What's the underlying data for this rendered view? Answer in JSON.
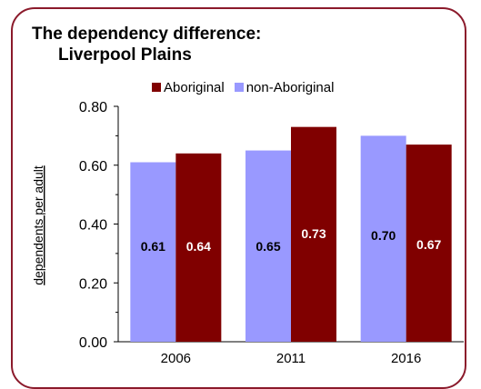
{
  "chart_data": {
    "type": "bar",
    "title_line1": "The dependency difference:",
    "title_line2": "Liverpool Plains",
    "xlabel": "",
    "ylabel": "dependents per adult",
    "categories": [
      "2006",
      "2011",
      "2016"
    ],
    "series": [
      {
        "name": "non-Aboriginal",
        "color": "#9999ff",
        "values": [
          0.61,
          0.65,
          0.7
        ],
        "labels": [
          "0.61",
          "0.65",
          "0.70"
        ]
      },
      {
        "name": "Aboriginal",
        "color": "#800000",
        "values": [
          0.64,
          0.73,
          0.67
        ],
        "labels": [
          "0.64",
          "0.73",
          "0.67"
        ]
      }
    ],
    "legend_order": [
      "Aboriginal",
      "non-Aboriginal"
    ],
    "ylim": [
      0,
      0.8
    ],
    "yticks": [
      0.0,
      0.2,
      0.4,
      0.6,
      0.8
    ],
    "ytick_labels": [
      "0.00",
      "0.20",
      "0.40",
      "0.60",
      "0.80"
    ],
    "grid": false,
    "legend_position": "top"
  }
}
